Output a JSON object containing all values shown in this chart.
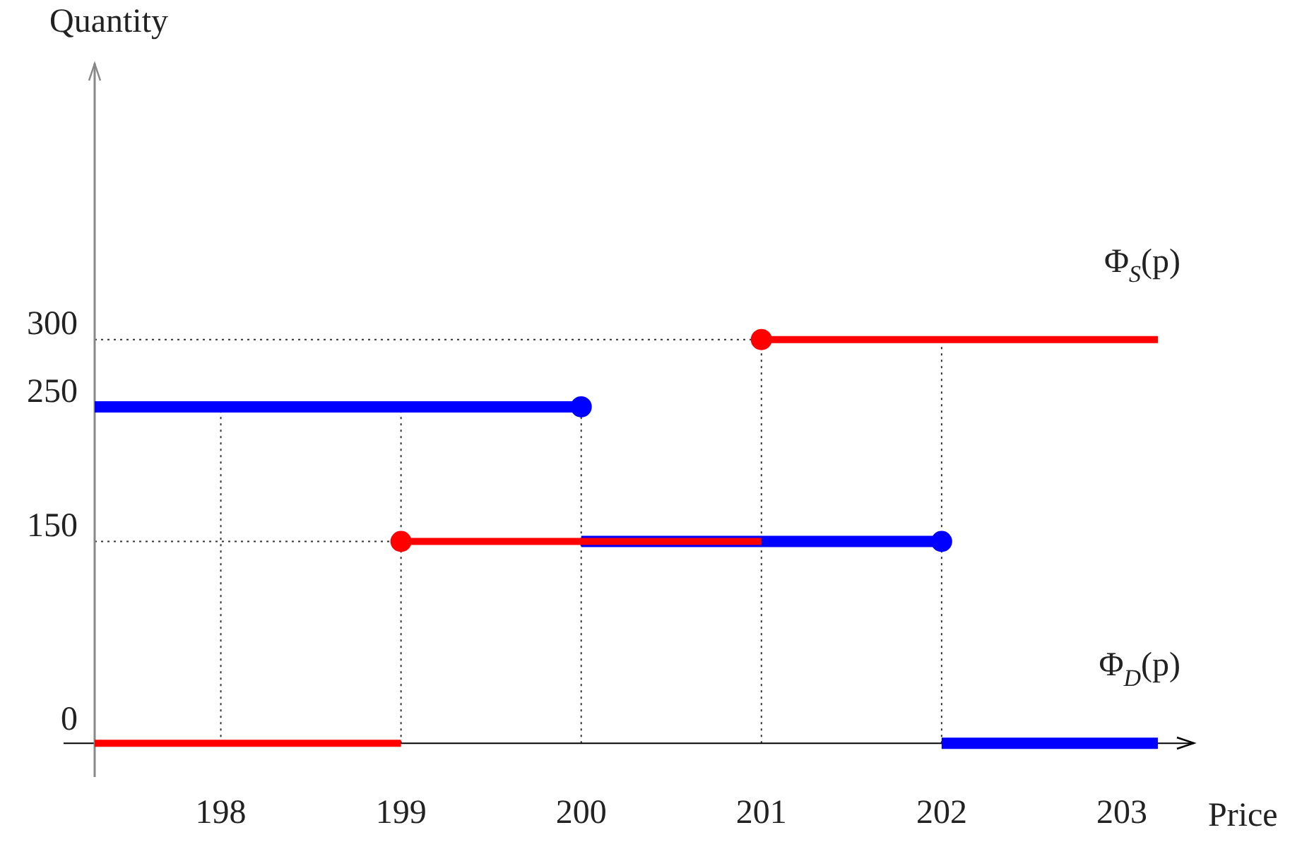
{
  "chart_data": {
    "type": "line",
    "xlabel": "Price",
    "ylabel": "Quantity",
    "xlim": [
      197.3,
      203.4
    ],
    "ylim": [
      -25,
      505
    ],
    "xticks": [
      198,
      199,
      200,
      201,
      202,
      203
    ],
    "yticks": [
      0,
      150,
      250,
      300
    ],
    "marker": "none",
    "legend": false,
    "series": [
      {
        "name": "Φ$_{S}$(p)",
        "color": "#ff0000",
        "x": [
          197.3,
          199,
          null,
          199,
          201,
          null,
          201,
          203.2
        ],
        "values": [
          0,
          0,
          null,
          150,
          150,
          null,
          300,
          300
        ]
      },
      {
        "name": "Φ$_{D}$(p)",
        "color": "#0000ff",
        "x": [
          197.3,
          200,
          null,
          200,
          202,
          null,
          202,
          203.2
        ],
        "values": [
          250,
          250,
          null,
          150,
          150,
          null,
          0,
          0
        ]
      },
      {
        "type": "scatter",
        "marker": "circle",
        "color": "#ff0000",
        "x": [
          199,
          201
        ],
        "values": [
          150,
          300
        ]
      },
      {
        "type": "scatter",
        "marker": "circle",
        "color": "#0000ff",
        "x": [
          200,
          202
        ],
        "values": [
          250,
          150
        ]
      }
    ],
    "ref_lines": [
      {
        "axis": "x",
        "value": 198,
        "line_style": "dotted",
        "color": "#333333"
      },
      {
        "axis": "x",
        "value": 199,
        "line_style": "dotted",
        "color": "#333333"
      },
      {
        "axis": "x",
        "value": 200,
        "line_style": "dotted",
        "color": "#333333"
      },
      {
        "axis": "x",
        "value": 201,
        "line_style": "dotted",
        "color": "#333333"
      },
      {
        "axis": "x",
        "value": 202,
        "line_style": "dotted",
        "color": "#333333"
      },
      {
        "axis": "y",
        "value": 150,
        "line_style": "dotted",
        "color": "#333333"
      },
      {
        "axis": "y",
        "value": 300,
        "line_style": "dotted",
        "color": "#333333"
      }
    ]
  }
}
